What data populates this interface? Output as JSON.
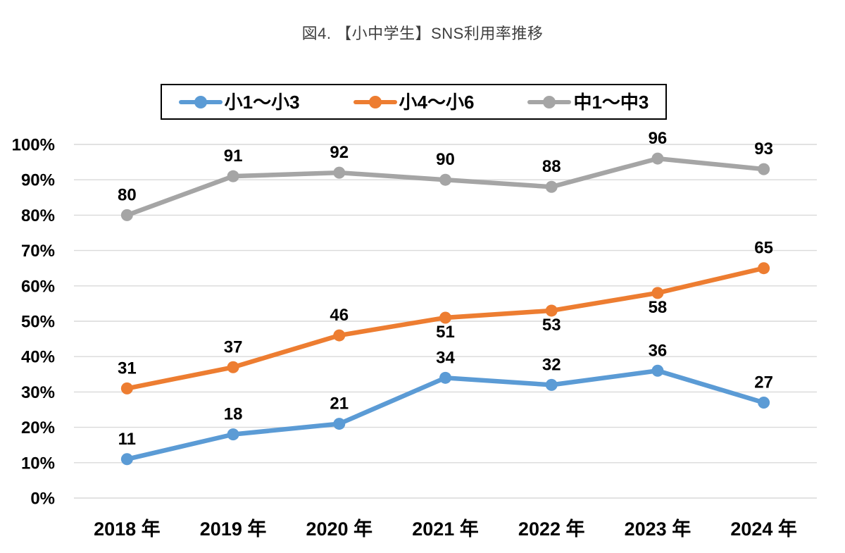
{
  "header": {
    "title": "図4. 【小中学生】SNS利用率推移"
  },
  "colors": {
    "series_blue": "#5B9BD5",
    "series_orange": "#ED7D31",
    "series_gray": "#A5A5A5",
    "gridline": "#D9D9D9",
    "title_text": "#3F3F3F",
    "axis_text": "#000000",
    "legend_border": "#000000",
    "background": "#FFFFFF"
  },
  "legend": {
    "position": "top",
    "items": [
      {
        "label": "小1～小3",
        "color": "#5B9BD5",
        "marker": "line-dot-icon"
      },
      {
        "label": "小4～小6",
        "color": "#ED7D31",
        "marker": "line-dot-icon"
      },
      {
        "label": "中1～中3",
        "color": "#A5A5A5",
        "marker": "line-dot-icon"
      }
    ]
  },
  "chart_data": {
    "type": "line",
    "title": "図4. 【小中学生】SNS利用率推移",
    "categories": [
      "2018 年",
      "2019 年",
      "2020 年",
      "2021 年",
      "2022 年",
      "2023 年",
      "2024 年"
    ],
    "series": [
      {
        "name": "小1～小3",
        "color": "#5B9BD5",
        "values": [
          11,
          18,
          21,
          34,
          32,
          36,
          27
        ],
        "label_side": [
          "above",
          "above",
          "above",
          "above",
          "above",
          "above",
          "above"
        ]
      },
      {
        "name": "小4～小6",
        "color": "#ED7D31",
        "values": [
          31,
          37,
          46,
          51,
          53,
          58,
          65
        ],
        "label_side": [
          "above",
          "above",
          "above",
          "below",
          "below",
          "below",
          "above"
        ]
      },
      {
        "name": "中1～中3",
        "color": "#A5A5A5",
        "values": [
          80,
          91,
          92,
          90,
          88,
          96,
          93
        ],
        "label_side": [
          "above",
          "above",
          "above",
          "above",
          "above",
          "above",
          "above"
        ]
      }
    ],
    "y_axis": {
      "unit": "%",
      "min": 0,
      "max": 100,
      "step": 10,
      "tick_labels": [
        "0%",
        "10%",
        "20%",
        "30%",
        "40%",
        "50%",
        "60%",
        "70%",
        "80%",
        "90%",
        "100%"
      ]
    },
    "xlabel": "",
    "ylabel": "",
    "grid": true,
    "data_labels": true,
    "legend_position": "top"
  }
}
